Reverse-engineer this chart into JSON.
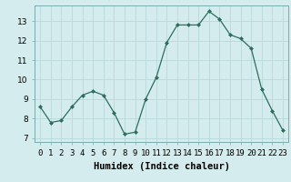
{
  "x": [
    0,
    1,
    2,
    3,
    4,
    5,
    6,
    7,
    8,
    9,
    10,
    11,
    12,
    13,
    14,
    15,
    16,
    17,
    18,
    19,
    20,
    21,
    22,
    23
  ],
  "y": [
    8.6,
    7.8,
    7.9,
    8.6,
    9.2,
    9.4,
    9.2,
    8.3,
    7.2,
    7.3,
    9.0,
    10.1,
    11.9,
    12.8,
    12.8,
    12.8,
    13.5,
    13.1,
    12.3,
    12.1,
    11.6,
    9.5,
    8.4,
    7.4
  ],
  "line_color": "#2e6e5e",
  "marker": "D",
  "marker_size": 2.0,
  "bg_color": "#d4ecee",
  "grid_color": "#b8d8da",
  "xlabel": "Humidex (Indice chaleur)",
  "xlim": [
    -0.5,
    23.5
  ],
  "ylim": [
    6.8,
    13.8
  ],
  "yticks": [
    7,
    8,
    9,
    10,
    11,
    12,
    13
  ],
  "xtick_labels": [
    "0",
    "1",
    "2",
    "3",
    "4",
    "5",
    "6",
    "7",
    "8",
    "9",
    "10",
    "11",
    "12",
    "13",
    "14",
    "15",
    "16",
    "17",
    "18",
    "19",
    "20",
    "21",
    "22",
    "23"
  ],
  "xlabel_fontsize": 7.5,
  "tick_fontsize": 6.5
}
